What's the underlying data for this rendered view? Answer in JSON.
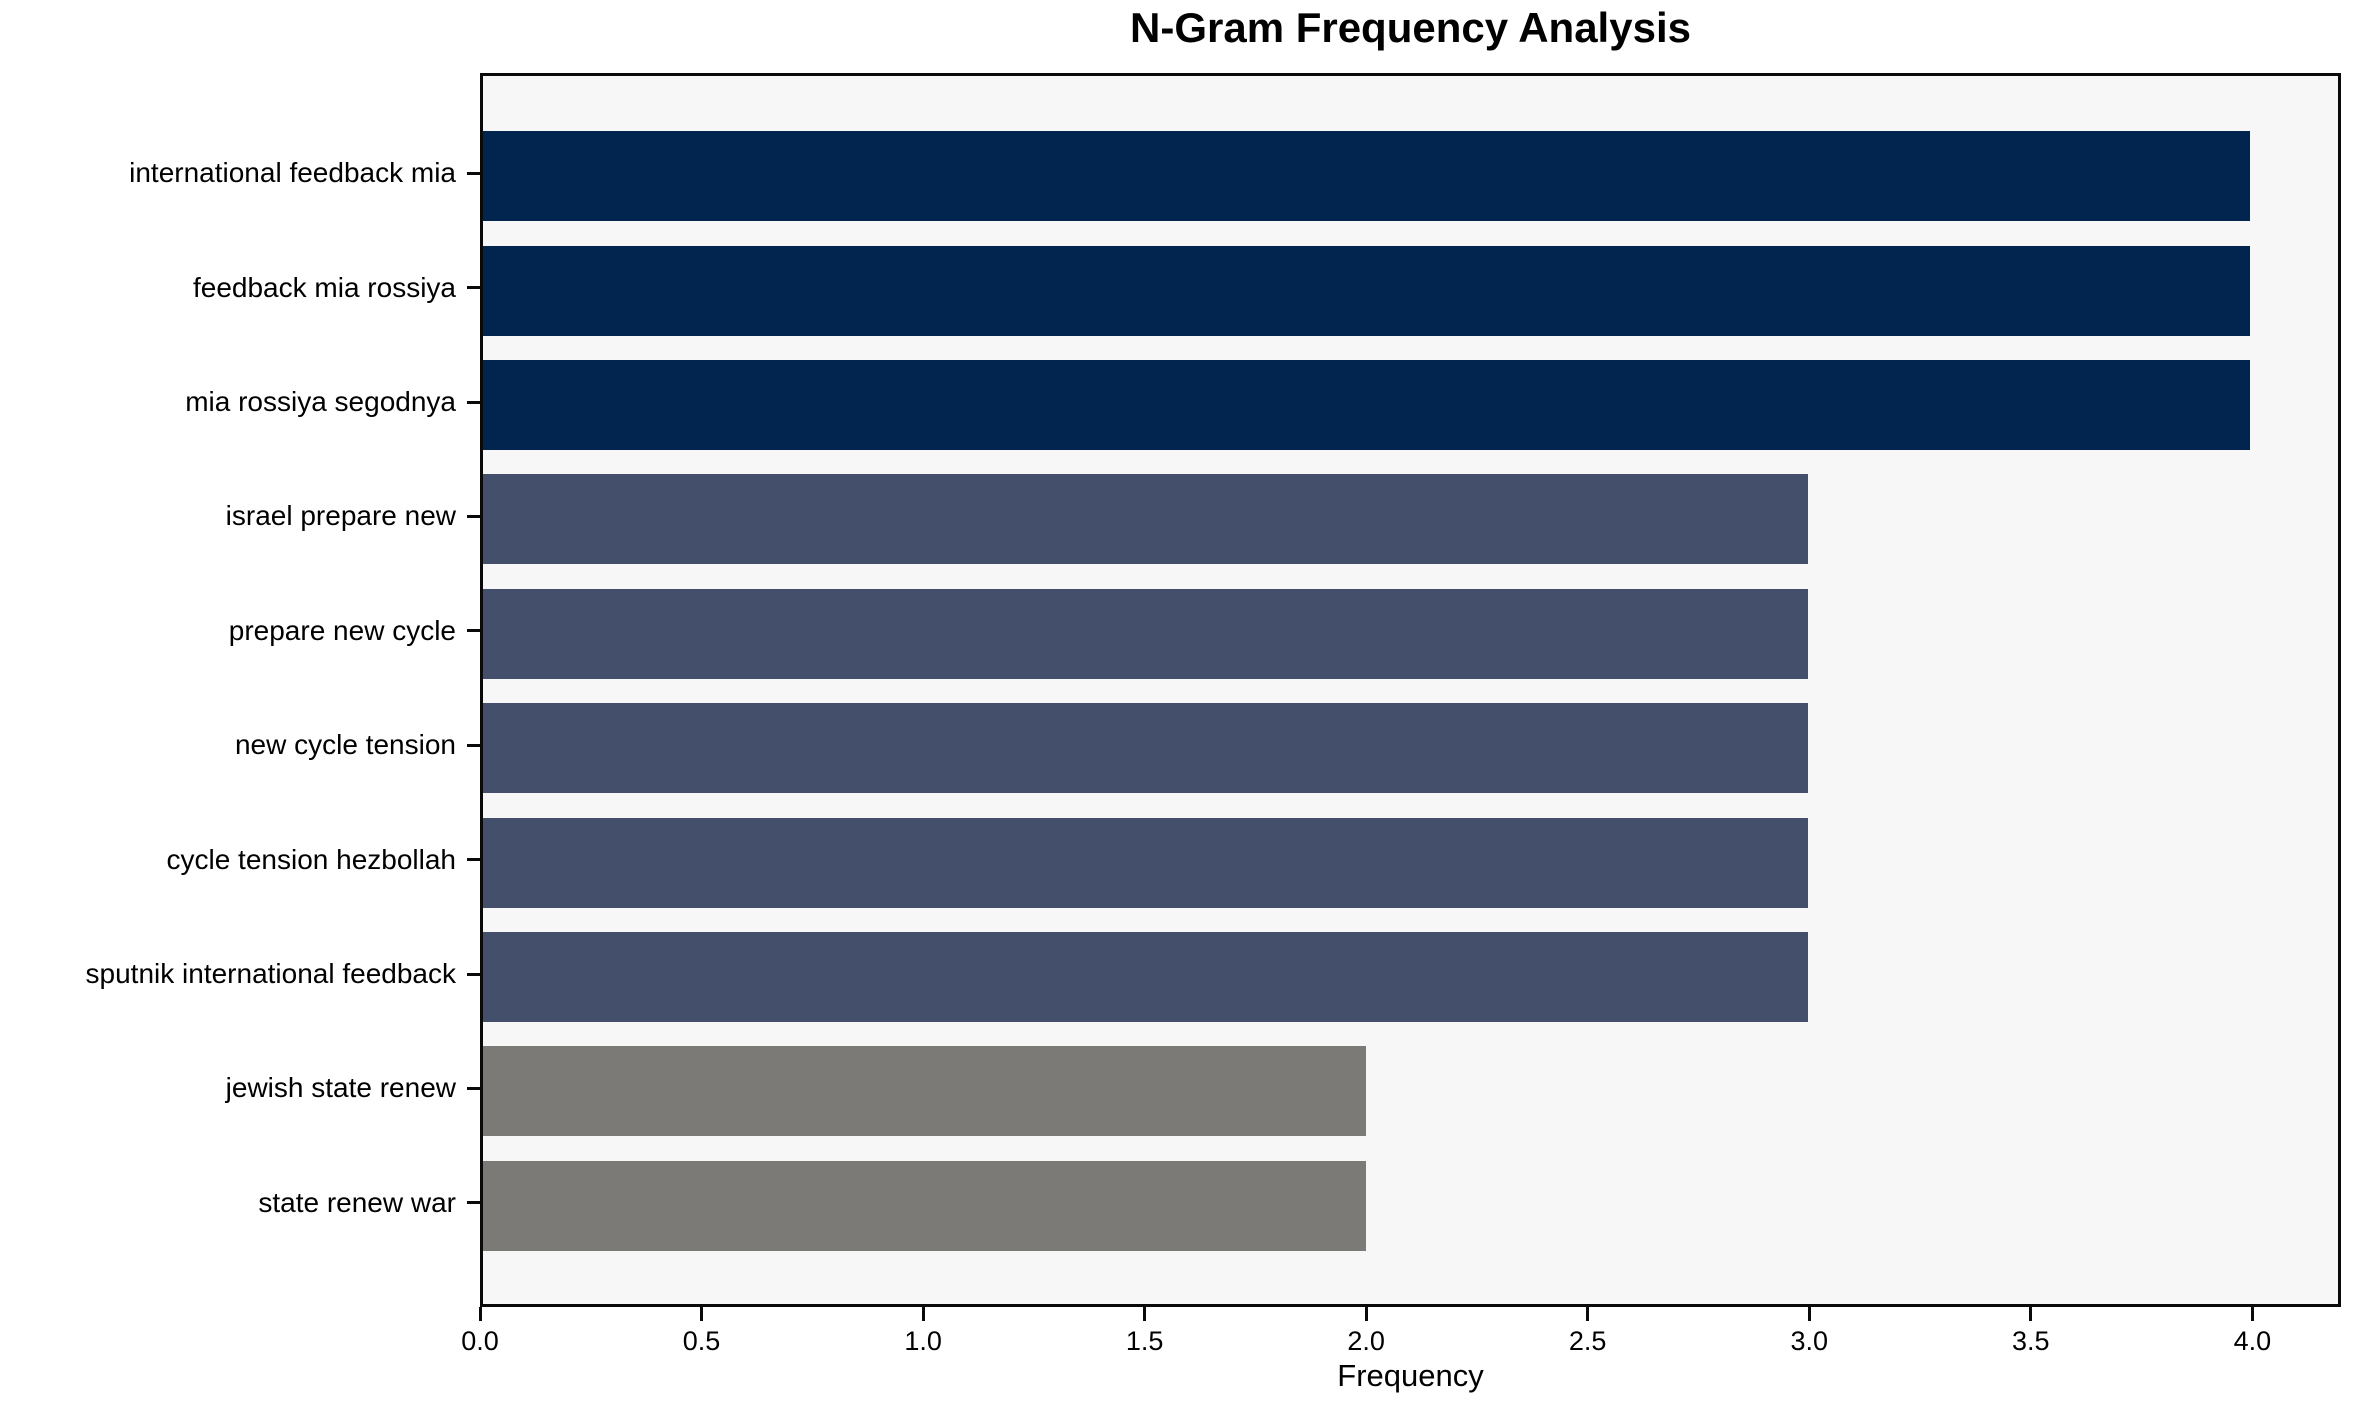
{
  "chart_data": {
    "type": "bar",
    "orientation": "horizontal",
    "title": "N-Gram Frequency Analysis",
    "xlabel": "Frequency",
    "ylabel": "",
    "categories": [
      "international feedback mia",
      "feedback mia rossiya",
      "mia rossiya segodnya",
      "israel prepare new",
      "prepare new cycle",
      "new cycle tension",
      "cycle tension hezbollah",
      "sputnik international feedback",
      "jewish state renew",
      "state renew war"
    ],
    "values": [
      4,
      4,
      4,
      3,
      3,
      3,
      3,
      3,
      2,
      2
    ],
    "bar_colors": [
      "#022550",
      "#022550",
      "#022550",
      "#444f6b",
      "#444f6b",
      "#444f6b",
      "#444f6b",
      "#444f6b",
      "#7b7a77",
      "#7b7a77"
    ],
    "xlim": [
      0,
      4.2
    ],
    "xticks": [
      0.0,
      0.5,
      1.0,
      1.5,
      2.0,
      2.5,
      3.0,
      3.5,
      4.0
    ],
    "xtick_labels": [
      "0.0",
      "0.5",
      "1.0",
      "1.5",
      "2.0",
      "2.5",
      "3.0",
      "3.5",
      "4.0"
    ],
    "grid": false,
    "legend": null,
    "colors": {
      "figure_background": "#ffffff",
      "plot_background": "#f7f7f7",
      "spine": "#0a0a0a",
      "text": "#000000"
    }
  }
}
